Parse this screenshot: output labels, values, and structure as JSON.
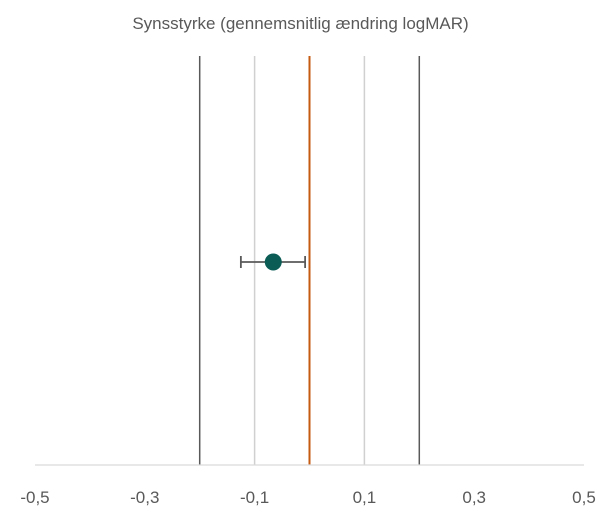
{
  "chart_data": {
    "type": "scatter",
    "title": "Synsstyrke (gennemsnitlig ændring logMAR)",
    "xlim": [
      -0.5,
      0.5
    ],
    "x_ticks": [
      -0.5,
      -0.3,
      -0.1,
      0.1,
      0.3,
      0.5
    ],
    "x_tick_labels": [
      "-0,5",
      "-0,3",
      "-0,1",
      "0,1",
      "0,3",
      "0,5"
    ],
    "points": [
      {
        "x": -0.066,
        "ci_low": -0.125,
        "ci_high": -0.008
      }
    ],
    "reference_lines": [
      {
        "x": -0.2,
        "color": "#595959",
        "role": "outer-bound"
      },
      {
        "x": -0.1,
        "color": "#d0d0d0",
        "role": "inner-bound"
      },
      {
        "x": 0.0,
        "color": "#c55a11",
        "role": "no-effect"
      },
      {
        "x": 0.1,
        "color": "#d0d0d0",
        "role": "inner-bound"
      },
      {
        "x": 0.2,
        "color": "#595959",
        "role": "outer-bound"
      }
    ],
    "point_color": "#0b5c55",
    "errorbar_color": "#595959",
    "grid": false
  }
}
